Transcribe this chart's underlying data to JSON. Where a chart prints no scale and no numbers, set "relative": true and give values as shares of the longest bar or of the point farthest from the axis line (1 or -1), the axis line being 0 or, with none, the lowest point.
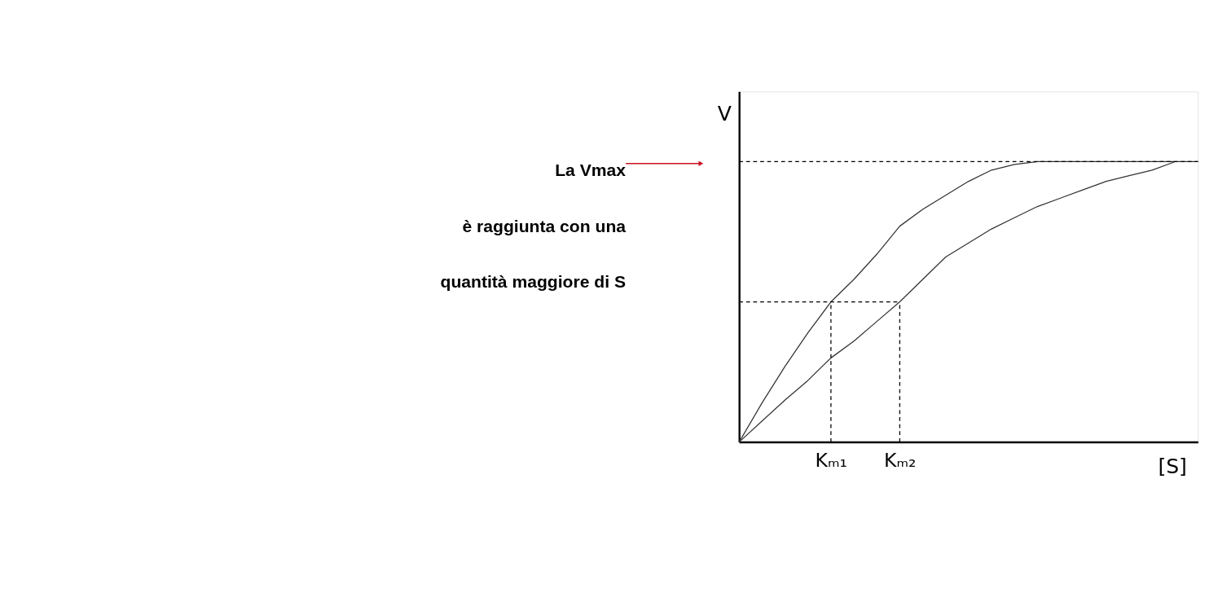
{
  "chart_data": {
    "type": "line",
    "relative": true,
    "xlabel": "[S]",
    "ylabel": "V",
    "categories": [
      null,
      null,
      null,
      null,
      "Kₘ₁",
      null,
      null,
      "Kₘ₂",
      null,
      null,
      null,
      null,
      null,
      null,
      null,
      null,
      null,
      null,
      null,
      null,
      null
    ],
    "series": [
      {
        "color": "#333333",
        "values": [
          0,
          0.14,
          0.27,
          0.39,
          0.5,
          0.58,
          0.67,
          0.77,
          0.83,
          0.88,
          0.93,
          0.97,
          0.99,
          1,
          1,
          1,
          1,
          1,
          1,
          1,
          1
        ]
      },
      {
        "color": "#333333",
        "values": [
          0,
          0.075,
          0.15,
          0.22,
          0.3,
          0.36,
          0.43,
          0.5,
          0.58,
          0.66,
          0.71,
          0.76,
          0.8,
          0.84,
          0.87,
          0.9,
          0.93,
          0.95,
          0.97,
          1,
          null
        ]
      }
    ],
    "ref_lines": [
      {
        "axis": "y",
        "value": 1,
        "line_style": "dashed",
        "color": "#000000"
      },
      {
        "axis": "y",
        "value": 0.5,
        "line_style": "dashed",
        "color": "#000000"
      },
      {
        "axis": "x",
        "value": "Kₘ₁",
        "line_style": "dashed",
        "color": "#000000"
      },
      {
        "axis": "x",
        "value": "Kₘ₂",
        "line_style": "dashed",
        "color": "#000000"
      }
    ],
    "annotations": [
      "La Vmax",
      "è raggiunta con una",
      "quantità maggiore di S"
    ],
    "marker": "none",
    "line_style": "solid",
    "grid": false,
    "legend": false
  }
}
